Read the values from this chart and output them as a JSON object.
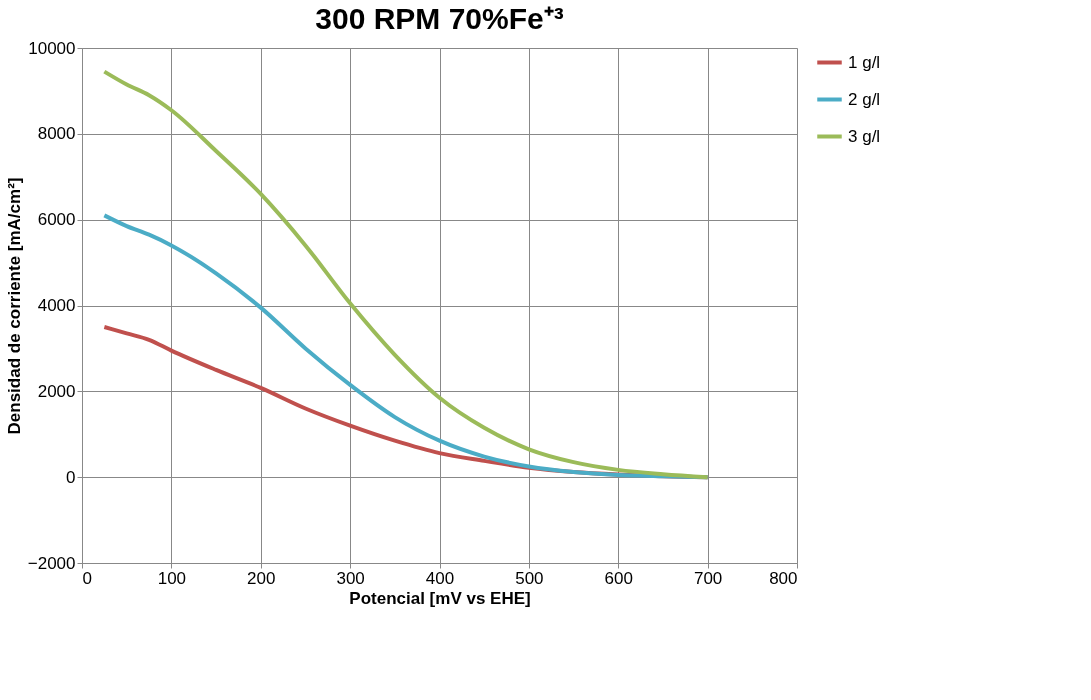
{
  "chart_data": {
    "type": "line",
    "title": "300 RPM 70%Fe⁺³",
    "xlabel": "Potencial [mV vs EHE]",
    "ylabel": "Densidad de corriente [mA/cm²]",
    "x": [
      25,
      50,
      75,
      100,
      150,
      200,
      250,
      300,
      350,
      400,
      450,
      500,
      550,
      600,
      650,
      700
    ],
    "series": [
      {
        "name": "1 g/l",
        "color": "#c0504d",
        "values": [
          3500,
          3350,
          3200,
          2950,
          2500,
          2080,
          1600,
          1200,
          850,
          560,
          380,
          220,
          120,
          60,
          20,
          0
        ]
      },
      {
        "name": "2 g/l",
        "color": "#4bacc6",
        "values": [
          6100,
          5850,
          5650,
          5400,
          4750,
          3950,
          3000,
          2150,
          1400,
          850,
          480,
          250,
          120,
          50,
          20,
          0
        ]
      },
      {
        "name": "3 g/l",
        "color": "#9bbb59",
        "values": [
          9450,
          9150,
          8900,
          8550,
          7600,
          6600,
          5400,
          4050,
          2850,
          1850,
          1150,
          650,
          350,
          170,
          70,
          0
        ]
      }
    ],
    "xlim": [
      0,
      800
    ],
    "xticks": [
      0,
      100,
      200,
      300,
      400,
      500,
      600,
      700,
      800
    ],
    "ylim": [
      -2000,
      10000
    ],
    "yticks": [
      -2000,
      0,
      2000,
      4000,
      6000,
      8000,
      10000
    ],
    "grid": true,
    "legend": "right",
    "marker": "none",
    "line_style": "solid"
  }
}
